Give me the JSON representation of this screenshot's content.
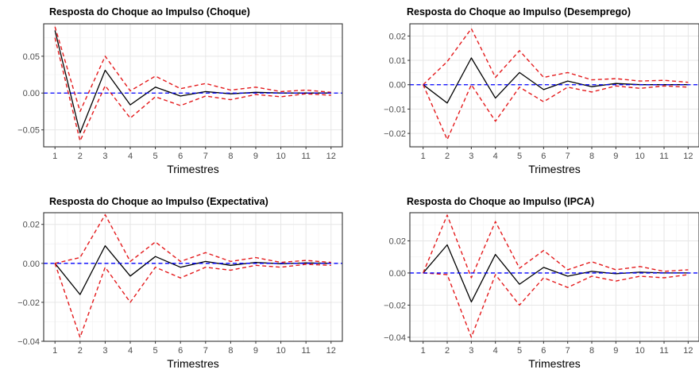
{
  "chart_data": [
    {
      "type": "line",
      "title": "Resposta do Choque ao Impulso (Choque)",
      "xlabel": "Trimestres",
      "ylabel": "",
      "x": [
        1,
        2,
        3,
        4,
        5,
        6,
        7,
        8,
        9,
        10,
        11,
        12
      ],
      "xlim": [
        0.55,
        12.45
      ],
      "ylim": [
        -0.073,
        0.094
      ],
      "yticks": [
        -0.05,
        0.0,
        0.05
      ],
      "ytick_labels": [
        "−0.05",
        "0.00",
        "0.05"
      ],
      "zero_line": 0,
      "grid": true,
      "series": [
        {
          "role": "irf",
          "color": "#000000",
          "style": "solid",
          "values": [
            0.085,
            -0.054,
            0.031,
            -0.016,
            0.008,
            -0.004,
            0.002,
            -0.001,
            0.001,
            0.0,
            0.0,
            0.0
          ]
        },
        {
          "role": "upper",
          "color": "#e41a1c",
          "style": "dashed",
          "values": [
            0.09,
            -0.025,
            0.05,
            0.003,
            0.023,
            0.006,
            0.013,
            0.004,
            0.008,
            0.002,
            0.004,
            0.001
          ]
        },
        {
          "role": "lower",
          "color": "#e41a1c",
          "style": "dashed",
          "values": [
            0.075,
            -0.065,
            0.01,
            -0.034,
            -0.005,
            -0.017,
            -0.004,
            -0.009,
            -0.002,
            -0.005,
            -0.001,
            -0.003
          ]
        }
      ]
    },
    {
      "type": "line",
      "title": "Resposta do Choque ao Impulso (Desemprego)",
      "xlabel": "Trimestres",
      "ylabel": "",
      "x": [
        1,
        2,
        3,
        4,
        5,
        6,
        7,
        8,
        9,
        10,
        11,
        12
      ],
      "xlim": [
        0.45,
        12.45
      ],
      "ylim": [
        -0.0255,
        0.025
      ],
      "yticks": [
        -0.02,
        -0.01,
        0.0,
        0.01,
        0.02
      ],
      "ytick_labels": [
        "−0.02",
        "−0.01",
        "0.00",
        "0.01",
        "0.02"
      ],
      "zero_line": 0,
      "grid": true,
      "series": [
        {
          "role": "irf",
          "color": "#000000",
          "style": "solid",
          "values": [
            0.0,
            -0.0075,
            0.011,
            -0.0055,
            0.005,
            -0.002,
            0.0015,
            -0.0008,
            0.0005,
            0.0,
            0.0,
            0.0
          ]
        },
        {
          "role": "upper",
          "color": "#e41a1c",
          "style": "dashed",
          "values": [
            0.0,
            0.0095,
            0.023,
            0.003,
            0.014,
            0.003,
            0.005,
            0.002,
            0.0025,
            0.0015,
            0.0018,
            0.001
          ]
        },
        {
          "role": "lower",
          "color": "#e41a1c",
          "style": "dashed",
          "values": [
            0.0,
            -0.0225,
            0.0,
            -0.015,
            -0.001,
            -0.007,
            -0.001,
            -0.003,
            -0.0005,
            -0.0015,
            -0.0005,
            -0.001
          ]
        }
      ]
    },
    {
      "type": "line",
      "title": "Resposta do Choque ao Impulso (Expectativa)",
      "xlabel": "Trimestres",
      "ylabel": "",
      "x": [
        1,
        2,
        3,
        4,
        5,
        6,
        7,
        8,
        9,
        10,
        11,
        12
      ],
      "xlim": [
        0.55,
        12.45
      ],
      "ylim": [
        -0.04,
        0.026
      ],
      "yticks": [
        -0.04,
        -0.02,
        0.0,
        0.02
      ],
      "ytick_labels": [
        "−0.04",
        "−0.02",
        "0.00",
        "0.02"
      ],
      "zero_line": 0,
      "grid": true,
      "series": [
        {
          "role": "irf",
          "color": "#000000",
          "style": "solid",
          "values": [
            0.0,
            -0.016,
            0.009,
            -0.0065,
            0.0035,
            -0.002,
            0.001,
            -0.001,
            0.0005,
            -0.0002,
            0.0002,
            0.0
          ]
        },
        {
          "role": "upper",
          "color": "#e41a1c",
          "style": "dashed",
          "values": [
            0.0,
            0.003,
            0.025,
            0.001,
            0.011,
            0.001,
            0.0055,
            0.001,
            0.003,
            0.0005,
            0.0015,
            0.0005
          ]
        },
        {
          "role": "lower",
          "color": "#e41a1c",
          "style": "dashed",
          "values": [
            0.0,
            -0.038,
            -0.002,
            -0.02,
            -0.002,
            -0.0075,
            -0.002,
            -0.0035,
            -0.001,
            -0.002,
            -0.0005,
            -0.001
          ]
        }
      ]
    },
    {
      "type": "line",
      "title": "Resposta do Choque ao Impulso (IPCA)",
      "xlabel": "Trimestres",
      "ylabel": "",
      "x": [
        1,
        2,
        3,
        4,
        5,
        6,
        7,
        8,
        9,
        10,
        11,
        12
      ],
      "xlim": [
        0.45,
        12.45
      ],
      "ylim": [
        -0.0425,
        0.0375
      ],
      "yticks": [
        -0.04,
        -0.02,
        0.0,
        0.02
      ],
      "ytick_labels": [
        "−0.04",
        "−0.02",
        "0.00",
        "0.02"
      ],
      "zero_line": 0,
      "grid": true,
      "series": [
        {
          "role": "irf",
          "color": "#000000",
          "style": "solid",
          "values": [
            0.0,
            0.0175,
            -0.018,
            0.0115,
            -0.007,
            0.0035,
            -0.002,
            0.001,
            -0.0005,
            0.0005,
            0.0,
            0.0
          ]
        },
        {
          "role": "upper",
          "color": "#e41a1c",
          "style": "dashed",
          "values": [
            0.0,
            0.036,
            -0.003,
            0.032,
            0.003,
            0.014,
            0.002,
            0.007,
            0.002,
            0.004,
            0.001,
            0.002
          ]
        },
        {
          "role": "lower",
          "color": "#e41a1c",
          "style": "dashed",
          "values": [
            0.0,
            -0.001,
            -0.04,
            -0.001,
            -0.02,
            -0.003,
            -0.009,
            -0.002,
            -0.005,
            -0.002,
            -0.003,
            -0.001
          ]
        }
      ]
    }
  ]
}
